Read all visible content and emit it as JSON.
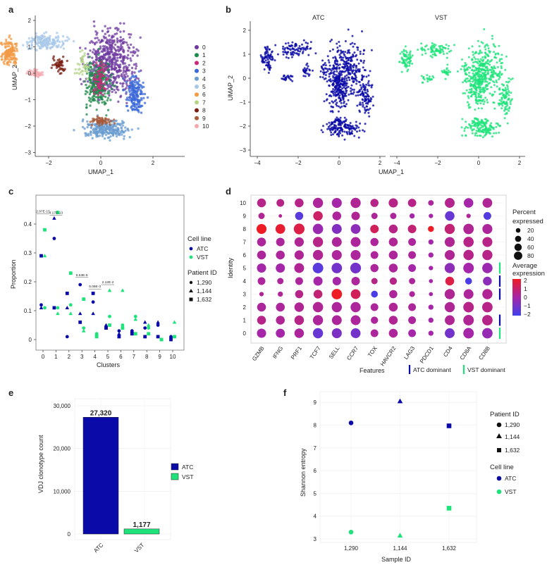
{
  "colors": {
    "atc": "#0a0aa8",
    "vst": "#1ee37a",
    "clusters": [
      "#6f3aa0",
      "#1f8a4c",
      "#c9297a",
      "#3b68d9",
      "#6a9cd0",
      "#a8c8e8",
      "#f29a44",
      "#b7d38a",
      "#7a1d12",
      "#a85a3a",
      "#f4a8ae"
    ],
    "expr_high": "#ee1c25",
    "expr_mid": "#a526a8",
    "expr_low": "#4040ee"
  },
  "panels": {
    "a": {
      "label": "a",
      "xlabel": "UMAP_1",
      "ylabel": "UMAP_2",
      "xticks": [
        "−4",
        "−2",
        "0",
        "2"
      ],
      "yticks": [
        "−3",
        "−2",
        "−1",
        "0",
        "1",
        "2"
      ],
      "legend": [
        "0",
        "1",
        "2",
        "3",
        "4",
        "5",
        "6",
        "7",
        "8",
        "9",
        "10"
      ]
    },
    "b": {
      "label": "b",
      "titles": [
        "ATC",
        "VST"
      ],
      "xlabel": "UMAP_1",
      "ylabel": "UMAP_2",
      "xticks": [
        "−4",
        "−2",
        "0",
        "2"
      ],
      "yticks": [
        "−3",
        "−2",
        "−1",
        "0",
        "1",
        "2"
      ]
    },
    "c": {
      "label": "c",
      "xlabel": "Clusters",
      "ylabel": "Proportion",
      "xticks": [
        "0",
        "1",
        "2",
        "3",
        "4",
        "5",
        "6",
        "7",
        "8",
        "9",
        "10"
      ],
      "yticks": [
        "0",
        "0.1",
        "0.2",
        "0.3",
        "0.4"
      ],
      "pvalues": [
        "2.97E-15",
        "4.17E-13",
        "5.53E-5",
        "6.08E-3",
        "2.12E-2"
      ],
      "legend_cellline_title": "Cell line",
      "legend_cellline": [
        "ATC",
        "VST"
      ],
      "legend_patient_title": "Patient ID",
      "legend_patient": [
        "1,290",
        "1,144",
        "1,632"
      ]
    },
    "d": {
      "label": "d",
      "xlabel": "Features",
      "ylabel": "Identity",
      "features": [
        "GZMB",
        "IFNG",
        "PRF1",
        "TCF7",
        "SELL",
        "CCR7",
        "TOX",
        "HAVCR2",
        "LAG3",
        "PDCD1",
        "CD4",
        "CD8A",
        "CD8B"
      ],
      "identities": [
        "10",
        "9",
        "8",
        "7",
        "6",
        "5",
        "4",
        "3",
        "2",
        "1",
        "0"
      ],
      "size_title": "Percent expressed",
      "size_values": [
        "20",
        "40",
        "60",
        "80"
      ],
      "color_title": "Average expression",
      "color_ticks": [
        "2",
        "1",
        "0",
        "−1",
        "−2"
      ],
      "atc_dominant": "ATC dominant",
      "vst_dominant": "VST dominant"
    },
    "e": {
      "label": "e",
      "ylabel": "VDJ clonotype count",
      "yticks": [
        "0",
        "10,000",
        "20,000",
        "30,000"
      ],
      "bar_labels": [
        "27,320",
        "1,177"
      ],
      "legend": [
        "ATC",
        "VST"
      ]
    },
    "f": {
      "label": "f",
      "xlabel": "Sample ID",
      "ylabel": "Shannon entropy",
      "yticks": [
        "3",
        "4",
        "5",
        "6",
        "7",
        "8",
        "9"
      ],
      "xticks": [
        "1,290",
        "1,144",
        "1,632"
      ],
      "legend_patient_title": "Patient ID",
      "legend_patient": [
        "1,290",
        "1,144",
        "1,632"
      ],
      "legend_cellline_title": "Cell line",
      "legend_cellline": [
        "ATC",
        "VST"
      ]
    }
  },
  "chart_data": [
    {
      "type": "scatter",
      "panel": "c",
      "title": "",
      "xlabel": "Clusters",
      "ylabel": "Proportion",
      "ylim": [
        0,
        0.45
      ],
      "series": [
        {
          "name": "ATC",
          "patient": "1,290",
          "marker": "circle",
          "x": [
            0,
            1,
            2,
            3,
            4,
            5,
            6,
            7,
            8,
            9,
            10
          ],
          "y": [
            0.12,
            0.35,
            0.01,
            0.19,
            0.13,
            0.04,
            0.03,
            0.03,
            0.04,
            0.05,
            0.01
          ]
        },
        {
          "name": "ATC",
          "patient": "1,144",
          "marker": "triangle",
          "x": [
            0,
            1,
            2,
            3,
            4,
            5,
            6,
            7,
            8,
            9,
            10
          ],
          "y": [
            0.11,
            0.42,
            0.11,
            0.09,
            0.09,
            0.05,
            0.02,
            0.03,
            0.06,
            0.06,
            0.01
          ]
        },
        {
          "name": "ATC",
          "patient": "1,632",
          "marker": "square",
          "x": [
            0,
            1,
            2,
            3,
            4,
            5,
            6,
            7,
            8,
            9,
            10
          ],
          "y": [
            0.29,
            0.11,
            0.16,
            0.06,
            0.16,
            0.04,
            0.01,
            0.02,
            0.01,
            0.01,
            0.0
          ]
        },
        {
          "name": "VST",
          "patient": "1,290",
          "marker": "circle",
          "x": [
            0,
            1,
            2,
            3,
            4,
            5,
            6,
            7,
            8,
            9,
            10
          ],
          "y": [
            0.11,
            0.11,
            0.12,
            0.04,
            0.02,
            0.08,
            0.05,
            0.08,
            0.04,
            0.0,
            0.01
          ]
        },
        {
          "name": "VST",
          "patient": "1,144",
          "marker": "triangle",
          "x": [
            0,
            1,
            2,
            3,
            4,
            5,
            6,
            7,
            8,
            9,
            10
          ],
          "y": [
            0.29,
            0.09,
            0.09,
            0.03,
            0.02,
            0.17,
            0.17,
            0.07,
            0.05,
            0.0,
            0.06
          ]
        },
        {
          "name": "VST",
          "patient": "1,632",
          "marker": "square",
          "x": [
            0,
            1,
            2,
            3,
            4,
            5,
            6,
            7,
            8,
            9,
            10
          ],
          "y": [
            0.38,
            0.44,
            0.23,
            0.14,
            0.01,
            0.05,
            0.04,
            0.02,
            0.02,
            0.0,
            0.01
          ]
        }
      ]
    },
    {
      "type": "heatmap",
      "panel": "d",
      "xlabel": "Features",
      "ylabel": "Identity",
      "features": [
        "GZMB",
        "IFNG",
        "PRF1",
        "TCF7",
        "SELL",
        "CCR7",
        "TOX",
        "HAVCR2",
        "LAG3",
        "PDCD1",
        "CD4",
        "CD8A",
        "CD8B"
      ],
      "identities": [
        "10",
        "9",
        "8",
        "7",
        "6",
        "5",
        "4",
        "3",
        "2",
        "1",
        "0"
      ],
      "percent_expressed": [
        [
          55,
          40,
          55,
          75,
          72,
          75,
          45,
          60,
          48,
          18,
          70,
          65,
          68
        ],
        [
          25,
          5,
          45,
          65,
          55,
          50,
          25,
          25,
          15,
          10,
          65,
          10,
          40
        ],
        [
          72,
          68,
          85,
          78,
          70,
          68,
          50,
          55,
          50,
          22,
          75,
          80,
          72
        ],
        [
          55,
          50,
          62,
          75,
          70,
          70,
          45,
          55,
          40,
          15,
          72,
          78,
          72
        ],
        [
          55,
          55,
          62,
          75,
          72,
          72,
          40,
          55,
          40,
          15,
          72,
          78,
          75
        ],
        [
          60,
          60,
          70,
          82,
          80,
          85,
          45,
          55,
          40,
          10,
          75,
          82,
          78
        ],
        [
          40,
          25,
          40,
          60,
          50,
          50,
          25,
          35,
          25,
          8,
          55,
          30,
          55
        ],
        [
          10,
          15,
          45,
          55,
          80,
          68,
          30,
          45,
          20,
          8,
          75,
          70,
          75
        ],
        [
          55,
          55,
          65,
          78,
          75,
          75,
          40,
          55,
          40,
          15,
          75,
          82,
          80
        ],
        [
          55,
          55,
          65,
          75,
          70,
          70,
          35,
          55,
          40,
          15,
          70,
          82,
          80
        ],
        [
          60,
          58,
          65,
          75,
          72,
          70,
          40,
          55,
          40,
          15,
          70,
          82,
          80
        ]
      ],
      "average_expression": [
        [
          0.5,
          0.5,
          0.5,
          0.2,
          0.0,
          0.3,
          0.5,
          0.5,
          0.5,
          0.2,
          0.4,
          0.0,
          0.3
        ],
        [
          0.3,
          0.3,
          -1.5,
          1.0,
          0.2,
          0.3,
          0.2,
          0.2,
          0.0,
          0.0,
          -1.2,
          0.3,
          -1.6
        ],
        [
          2.0,
          1.8,
          1.5,
          -0.2,
          -0.7,
          -0.5,
          1.2,
          0.5,
          0.8,
          2.0,
          0.8,
          0.3,
          0.2
        ],
        [
          0.2,
          0.2,
          0.3,
          0.5,
          0.2,
          0.2,
          0.2,
          0.3,
          0.2,
          0.0,
          0.3,
          0.5,
          0.5
        ],
        [
          0.2,
          0.2,
          0.3,
          0.3,
          0.2,
          0.2,
          0.2,
          0.2,
          0.2,
          0.0,
          0.3,
          0.5,
          0.5
        ],
        [
          0.0,
          0.0,
          0.3,
          -1.5,
          -1.0,
          -1.0,
          0.2,
          0.2,
          0.0,
          0.0,
          -0.5,
          0.0,
          -0.2
        ],
        [
          0.2,
          0.2,
          0.2,
          0.0,
          0.0,
          0.2,
          0.5,
          0.5,
          0.2,
          0.0,
          1.5,
          -1.8,
          -0.5
        ],
        [
          0.3,
          0.3,
          0.5,
          0.8,
          2.0,
          1.2,
          -1.8,
          0.2,
          0.2,
          0.0,
          0.3,
          0.2,
          0.3
        ],
        [
          0.2,
          0.2,
          0.3,
          0.3,
          0.2,
          0.2,
          0.2,
          0.3,
          0.2,
          0.0,
          0.3,
          0.5,
          0.5
        ],
        [
          0.5,
          0.3,
          0.5,
          0.2,
          0.2,
          0.2,
          0.2,
          0.3,
          0.2,
          0.0,
          0.3,
          0.3,
          0.5
        ],
        [
          0.0,
          0.0,
          0.2,
          -1.2,
          -0.8,
          -1.0,
          0.2,
          0.2,
          0.0,
          0.0,
          -1.0,
          0.0,
          -0.3
        ]
      ],
      "dominant_markers": [
        {
          "identity": "5",
          "group": "VST"
        },
        {
          "identity": "4",
          "group": "ATC"
        },
        {
          "identity": "3",
          "group": "ATC"
        },
        {
          "identity": "1",
          "group": "ATC"
        },
        {
          "identity": "0",
          "group": "VST"
        }
      ]
    },
    {
      "type": "bar",
      "panel": "e",
      "categories": [
        "ATC",
        "VST"
      ],
      "values": [
        27320,
        1177
      ],
      "ylabel": "VDJ clonotype count",
      "ylim": [
        0,
        33000
      ]
    },
    {
      "type": "scatter",
      "panel": "f",
      "xlabel": "Sample ID",
      "ylabel": "Shannon entropy",
      "categories": [
        "1,290",
        "1,144",
        "1,632"
      ],
      "ylim": [
        2.9,
        9.3
      ],
      "series": [
        {
          "name": "ATC",
          "x": [
            "1,290",
            "1,144",
            "1,632"
          ],
          "y": [
            8.1,
            9.05,
            7.97
          ],
          "markers": [
            "circle",
            "triangle",
            "square"
          ]
        },
        {
          "name": "VST",
          "x": [
            "1,290",
            "1,144",
            "1,632"
          ],
          "y": [
            3.3,
            3.15,
            4.35
          ],
          "markers": [
            "circle",
            "triangle",
            "square"
          ]
        }
      ]
    }
  ]
}
